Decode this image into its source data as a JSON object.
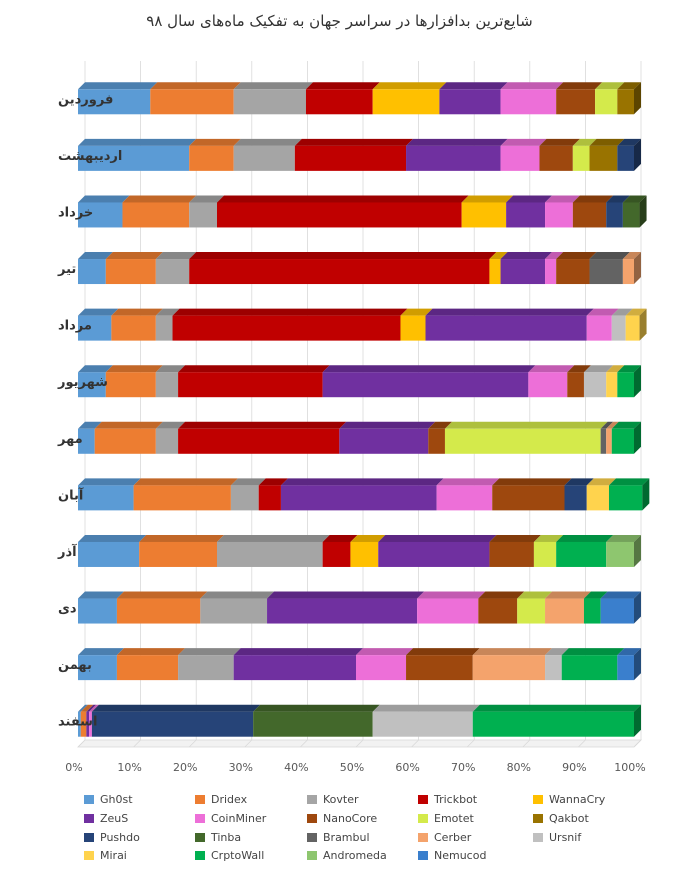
{
  "chart_data": {
    "type": "bar",
    "orientation": "horizontal",
    "stacked": "percent",
    "title": "شایع‌ترین بدافزارها در سراسر جهان به تفکیک ماه‌های سال ۹۸",
    "xlim": [
      0,
      100
    ],
    "x_ticks": [
      "0%",
      "10%",
      "20%",
      "30%",
      "40%",
      "50%",
      "60%",
      "70%",
      "80%",
      "90%",
      "100%"
    ],
    "categories": [
      "فروردین",
      "اردیبهشت",
      "خرداد",
      "تیر",
      "مرداد",
      "شهریور",
      "مهر",
      "آبان",
      "آذر",
      "دی",
      "بهمن",
      "اسفند"
    ],
    "series": [
      {
        "name": "Gh0st",
        "color": "#5b9bd5",
        "values": [
          13,
          20,
          8,
          5,
          6,
          5,
          3,
          10,
          11,
          7,
          7,
          0.5
        ]
      },
      {
        "name": "Dridex",
        "color": "#ed7d31",
        "values": [
          15,
          8,
          12,
          9,
          8,
          9,
          11,
          17.5,
          14,
          15,
          11,
          1
        ]
      },
      {
        "name": "Kovter",
        "color": "#a5a5a5",
        "values": [
          13,
          11,
          5,
          6,
          3,
          4,
          4,
          5,
          19,
          12,
          10,
          0
        ]
      },
      {
        "name": "Trickbot",
        "color": "#c00000",
        "values": [
          12,
          20,
          44,
          54,
          41,
          26,
          29,
          4,
          5,
          0,
          0,
          0
        ]
      },
      {
        "name": "WannaCry",
        "color": "#ffc000",
        "values": [
          12,
          0,
          8,
          2,
          4.5,
          0,
          0,
          0,
          5,
          0,
          0,
          0
        ]
      },
      {
        "name": "ZeuS",
        "color": "#7030a0",
        "values": [
          11,
          17,
          7,
          8,
          29,
          37,
          16,
          28,
          20,
          27,
          22,
          0.5
        ]
      },
      {
        "name": "CoinMiner",
        "color": "#ed6fd8",
        "values": [
          10,
          7,
          5,
          2,
          4.5,
          7,
          0,
          10,
          0,
          11,
          9,
          0.5
        ]
      },
      {
        "name": "NanoCore",
        "color": "#9e480e",
        "values": [
          7,
          6,
          6,
          6,
          0,
          3,
          3,
          13,
          8,
          7,
          12,
          0
        ]
      },
      {
        "name": "Emotet",
        "color": "#d4ea4b",
        "values": [
          4,
          3,
          0,
          0,
          0,
          0,
          28,
          0,
          4,
          5,
          0,
          0
        ]
      },
      {
        "name": "Qakbot",
        "color": "#997300",
        "values": [
          3,
          5,
          0,
          0,
          0,
          0,
          0,
          0,
          0,
          0,
          0,
          0
        ]
      },
      {
        "name": "Pushdo",
        "color": "#264478",
        "values": [
          0,
          3,
          3,
          0,
          0,
          0,
          0,
          4,
          0,
          0,
          0,
          29
        ]
      },
      {
        "name": "Tinba",
        "color": "#43682b",
        "values": [
          0,
          0,
          3,
          0,
          0,
          0,
          0,
          0,
          0,
          0,
          0,
          21.5
        ]
      },
      {
        "name": "Brambul",
        "color": "#636363",
        "values": [
          0,
          0,
          0,
          6,
          0,
          0,
          1,
          0,
          0,
          0,
          0,
          0
        ]
      },
      {
        "name": "Cerber",
        "color": "#f4a36c",
        "values": [
          0,
          0,
          0,
          2,
          0,
          0,
          1,
          0,
          0,
          7,
          13,
          0
        ]
      },
      {
        "name": "Ursnif",
        "color": "#c0c0c0",
        "values": [
          0,
          0,
          0,
          0,
          2.5,
          4,
          0,
          0,
          0,
          0,
          3,
          18
        ]
      },
      {
        "name": "Mirai",
        "color": "#ffd34d",
        "values": [
          0,
          0,
          0,
          0,
          2.5,
          2,
          0,
          4,
          0,
          0,
          0,
          0
        ]
      },
      {
        "name": "CrptoWall",
        "color": "#00b050",
        "values": [
          0,
          0,
          0,
          0,
          0,
          3,
          4,
          6,
          9,
          3,
          10,
          29
        ]
      },
      {
        "name": "Andromeda",
        "color": "#8ec66f",
        "values": [
          0,
          0,
          0,
          0,
          0,
          0,
          0,
          0,
          5,
          0,
          0,
          0
        ]
      },
      {
        "name": "Nemucod",
        "color": "#3a7fcd",
        "values": [
          0,
          0,
          0,
          0,
          0,
          0,
          0,
          0,
          0,
          6,
          3,
          0
        ]
      }
    ]
  }
}
